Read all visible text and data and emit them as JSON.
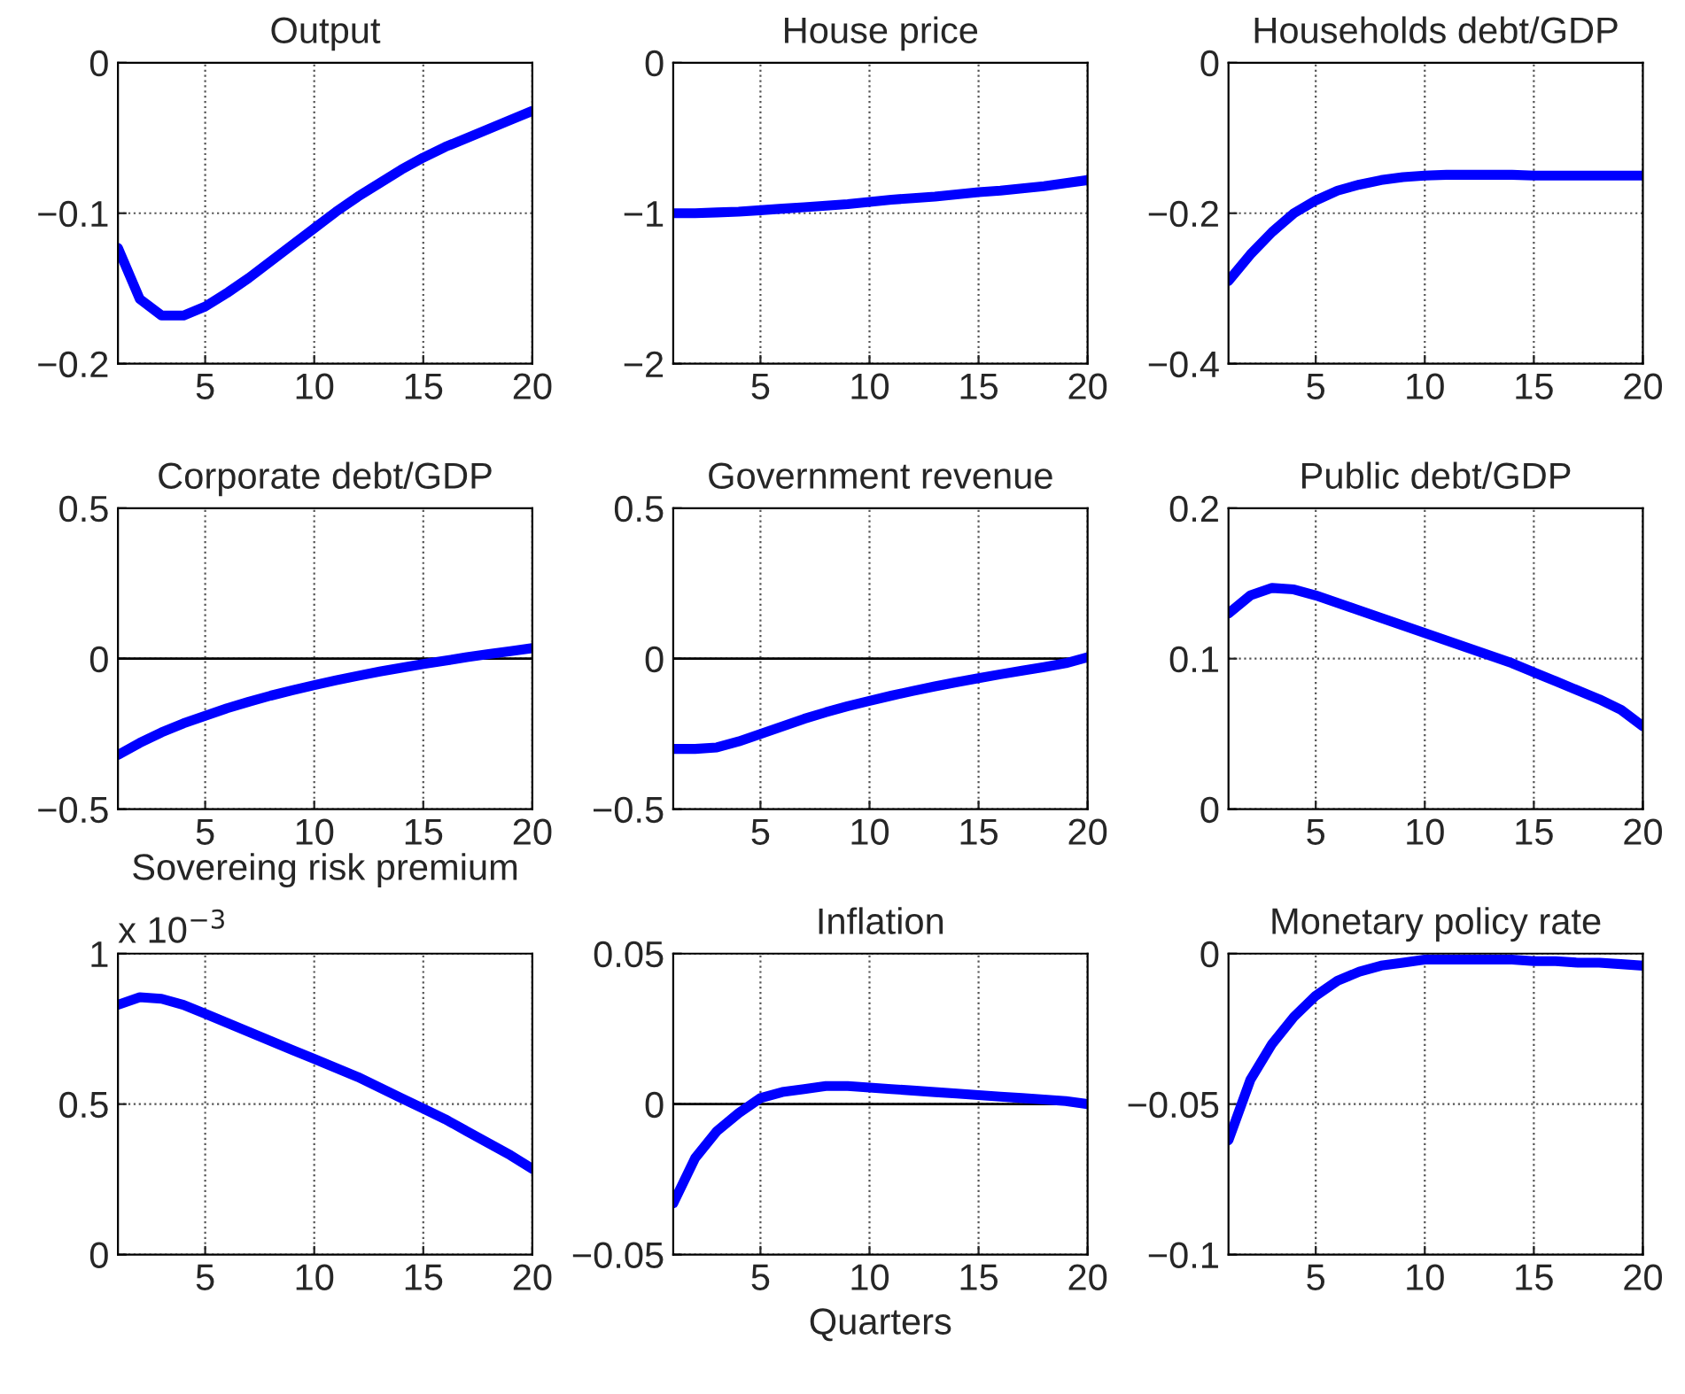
{
  "chart_data": [
    {
      "type": "line",
      "title": "Output",
      "x": [
        1,
        2,
        3,
        4,
        5,
        6,
        7,
        8,
        9,
        10,
        11,
        12,
        13,
        14,
        15,
        16,
        17,
        18,
        19,
        20
      ],
      "series": [
        {
          "color": "#0000ff",
          "values": [
            -0.123,
            -0.157,
            -0.168,
            -0.168,
            -0.162,
            -0.153,
            -0.143,
            -0.132,
            -0.121,
            -0.11,
            -0.099,
            -0.089,
            -0.08,
            -0.071,
            -0.063,
            -0.056,
            -0.05,
            -0.044,
            -0.038,
            -0.032
          ]
        }
      ],
      "xlim": [
        1,
        20
      ],
      "xticks": [
        5,
        10,
        15,
        20
      ],
      "ylim": [
        -0.2,
        0
      ],
      "yticks": [
        -0.2,
        -0.1,
        0
      ],
      "grid": true
    },
    {
      "type": "line",
      "title": "House price",
      "x": [
        1,
        2,
        3,
        4,
        5,
        6,
        7,
        8,
        9,
        10,
        11,
        12,
        13,
        14,
        15,
        16,
        17,
        18,
        19,
        20
      ],
      "series": [
        {
          "color": "#0000ff",
          "values": [
            -1.0,
            -1.0,
            -0.995,
            -0.99,
            -0.98,
            -0.97,
            -0.96,
            -0.95,
            -0.94,
            -0.925,
            -0.91,
            -0.9,
            -0.89,
            -0.875,
            -0.86,
            -0.85,
            -0.835,
            -0.82,
            -0.8,
            -0.78
          ]
        }
      ],
      "xlim": [
        1,
        20
      ],
      "xticks": [
        5,
        10,
        15,
        20
      ],
      "ylim": [
        -2,
        0
      ],
      "yticks": [
        -2,
        -1,
        0
      ],
      "grid": true
    },
    {
      "type": "line",
      "title": "Households debt/GDP",
      "x": [
        1,
        2,
        3,
        4,
        5,
        6,
        7,
        8,
        9,
        10,
        11,
        12,
        13,
        14,
        15,
        16,
        17,
        18,
        19,
        20
      ],
      "series": [
        {
          "color": "#0000ff",
          "values": [
            -0.29,
            -0.255,
            -0.225,
            -0.2,
            -0.183,
            -0.17,
            -0.162,
            -0.156,
            -0.152,
            -0.15,
            -0.149,
            -0.149,
            -0.149,
            -0.149,
            -0.15,
            -0.15,
            -0.15,
            -0.15,
            -0.15,
            -0.15
          ]
        }
      ],
      "xlim": [
        1,
        20
      ],
      "xticks": [
        5,
        10,
        15,
        20
      ],
      "ylim": [
        -0.4,
        0
      ],
      "yticks": [
        -0.4,
        -0.2,
        0
      ],
      "grid": true
    },
    {
      "type": "line",
      "title": "Corporate debt/GDP",
      "x": [
        1,
        2,
        3,
        4,
        5,
        6,
        7,
        8,
        9,
        10,
        11,
        12,
        13,
        14,
        15,
        16,
        17,
        18,
        19,
        20
      ],
      "series": [
        {
          "color": "#0000ff",
          "values": [
            -0.32,
            -0.28,
            -0.245,
            -0.215,
            -0.19,
            -0.165,
            -0.143,
            -0.123,
            -0.105,
            -0.088,
            -0.072,
            -0.057,
            -0.043,
            -0.03,
            -0.018,
            -0.007,
            0.005,
            0.015,
            0.025,
            0.035
          ]
        }
      ],
      "xlim": [
        1,
        20
      ],
      "xticks": [
        5,
        10,
        15,
        20
      ],
      "ylim": [
        -0.5,
        0.5
      ],
      "yticks": [
        -0.5,
        0,
        0.5
      ],
      "grid": true,
      "ref_lines": [
        {
          "axis": "y",
          "value": 0,
          "color": "#000000"
        }
      ]
    },
    {
      "type": "line",
      "title": "Government revenue",
      "x": [
        1,
        2,
        3,
        4,
        5,
        6,
        7,
        8,
        9,
        10,
        11,
        12,
        13,
        14,
        15,
        16,
        17,
        18,
        19,
        20
      ],
      "series": [
        {
          "color": "#0000ff",
          "values": [
            -0.3,
            -0.3,
            -0.295,
            -0.275,
            -0.25,
            -0.225,
            -0.2,
            -0.178,
            -0.158,
            -0.14,
            -0.123,
            -0.107,
            -0.092,
            -0.078,
            -0.065,
            -0.052,
            -0.04,
            -0.028,
            -0.015,
            0.005
          ]
        }
      ],
      "xlim": [
        1,
        20
      ],
      "xticks": [
        5,
        10,
        15,
        20
      ],
      "ylim": [
        -0.5,
        0.5
      ],
      "yticks": [
        -0.5,
        0,
        0.5
      ],
      "grid": true,
      "ref_lines": [
        {
          "axis": "y",
          "value": 0,
          "color": "#000000"
        }
      ]
    },
    {
      "type": "line",
      "title": "Public debt/GDP",
      "x": [
        1,
        2,
        3,
        4,
        5,
        6,
        7,
        8,
        9,
        10,
        11,
        12,
        13,
        14,
        15,
        16,
        17,
        18,
        19,
        20
      ],
      "series": [
        {
          "color": "#0000ff",
          "values": [
            0.13,
            0.142,
            0.147,
            0.146,
            0.142,
            0.137,
            0.132,
            0.127,
            0.122,
            0.117,
            0.112,
            0.107,
            0.102,
            0.097,
            0.091,
            0.085,
            0.079,
            0.073,
            0.066,
            0.055
          ]
        }
      ],
      "xlim": [
        1,
        20
      ],
      "xticks": [
        5,
        10,
        15,
        20
      ],
      "ylim": [
        0,
        0.2
      ],
      "yticks": [
        0,
        0.1,
        0.2
      ],
      "grid": true
    },
    {
      "type": "line",
      "title": "Sovereing risk premium",
      "annotations": [
        "x 10$^{−3}$"
      ],
      "x": [
        1,
        2,
        3,
        4,
        5,
        6,
        7,
        8,
        9,
        10,
        11,
        12,
        13,
        14,
        15,
        16,
        17,
        18,
        19,
        20
      ],
      "series": [
        {
          "color": "#0000ff",
          "values": [
            0.83,
            0.855,
            0.85,
            0.83,
            0.8,
            0.77,
            0.74,
            0.71,
            0.68,
            0.65,
            0.62,
            0.59,
            0.555,
            0.52,
            0.485,
            0.45,
            0.41,
            0.37,
            0.33,
            0.285
          ]
        }
      ],
      "xlim": [
        1,
        20
      ],
      "xticks": [
        5,
        10,
        15,
        20
      ],
      "ylim": [
        0,
        1
      ],
      "yticks": [
        0,
        0.5,
        1
      ],
      "grid": true
    },
    {
      "type": "line",
      "title": "Inflation",
      "xlabel": "Quarters",
      "x": [
        1,
        2,
        3,
        4,
        5,
        6,
        7,
        8,
        9,
        10,
        11,
        12,
        13,
        14,
        15,
        16,
        17,
        18,
        19,
        20
      ],
      "series": [
        {
          "color": "#0000ff",
          "values": [
            -0.033,
            -0.018,
            -0.009,
            -0.003,
            0.002,
            0.004,
            0.005,
            0.006,
            0.006,
            0.0055,
            0.005,
            0.0045,
            0.004,
            0.0035,
            0.003,
            0.0025,
            0.002,
            0.0015,
            0.001,
            0.0
          ]
        }
      ],
      "xlim": [
        1,
        20
      ],
      "xticks": [
        5,
        10,
        15,
        20
      ],
      "ylim": [
        -0.05,
        0.05
      ],
      "yticks": [
        -0.05,
        0,
        0.05
      ],
      "grid": true,
      "ref_lines": [
        {
          "axis": "y",
          "value": 0,
          "color": "#000000"
        }
      ]
    },
    {
      "type": "line",
      "title": "Monetary policy rate",
      "x": [
        1,
        2,
        3,
        4,
        5,
        6,
        7,
        8,
        9,
        10,
        11,
        12,
        13,
        14,
        15,
        16,
        17,
        18,
        19,
        20
      ],
      "series": [
        {
          "color": "#0000ff",
          "values": [
            -0.062,
            -0.042,
            -0.03,
            -0.021,
            -0.014,
            -0.009,
            -0.006,
            -0.004,
            -0.003,
            -0.002,
            -0.002,
            -0.002,
            -0.002,
            -0.002,
            -0.0025,
            -0.0025,
            -0.003,
            -0.003,
            -0.0035,
            -0.004
          ]
        }
      ],
      "xlim": [
        1,
        20
      ],
      "xticks": [
        5,
        10,
        15,
        20
      ],
      "ylim": [
        -0.1,
        0
      ],
      "yticks": [
        -0.1,
        -0.05,
        0
      ],
      "grid": true
    }
  ]
}
